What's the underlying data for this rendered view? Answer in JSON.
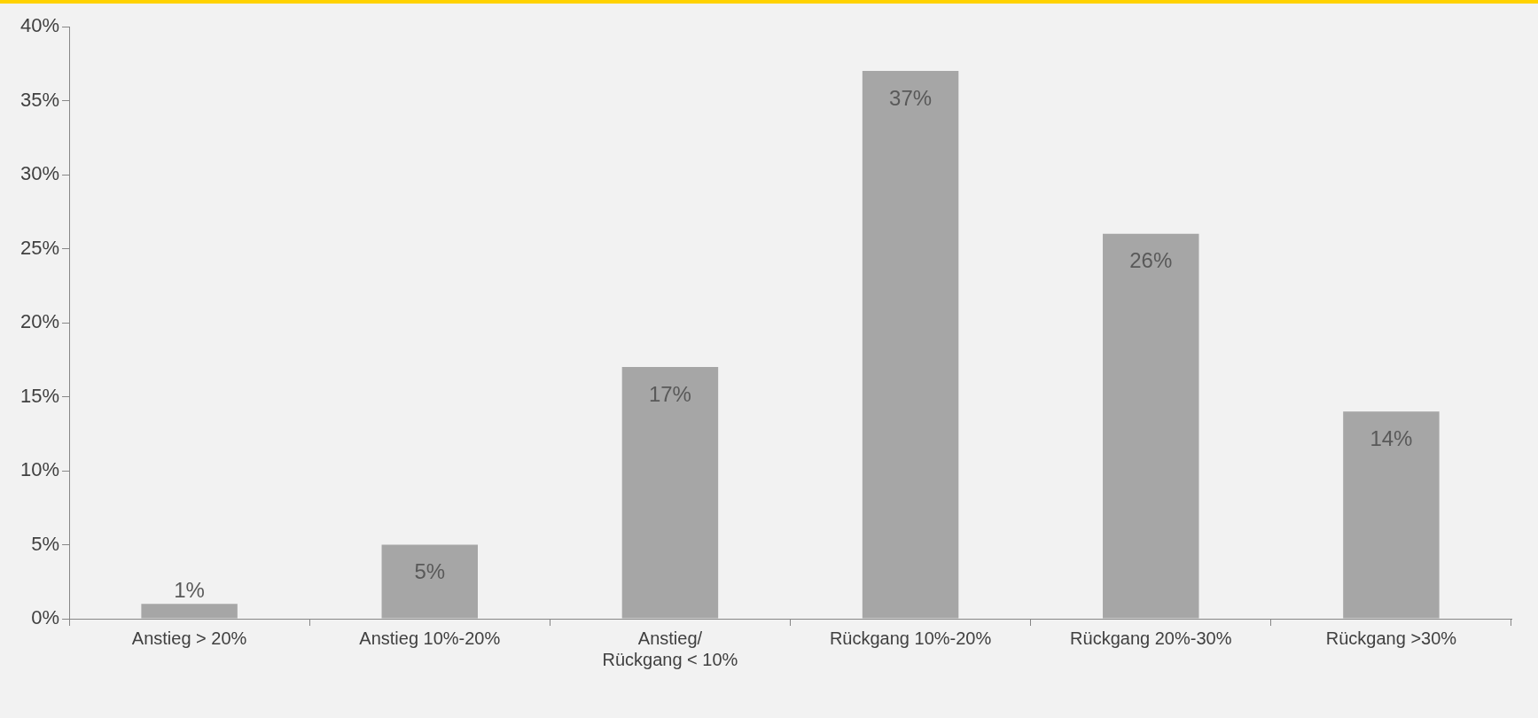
{
  "chart_data": {
    "type": "bar",
    "categories": [
      "Anstieg > 20%",
      "Anstieg 10%-20%",
      "Anstieg/ Rückgang < 10%",
      "Rückgang 10%-20%",
      "Rückgang 20%-30%",
      "Rückgang >30%"
    ],
    "values": [
      1,
      5,
      17,
      37,
      26,
      14
    ],
    "color": "#a6a6a6",
    "ylim": [
      0,
      40
    ],
    "yticks": [
      {
        "value": 0,
        "label": "0%"
      },
      {
        "value": 5,
        "label": "5%"
      },
      {
        "value": 10,
        "label": "10%"
      },
      {
        "value": 15,
        "label": "15%"
      },
      {
        "value": 20,
        "label": "20%"
      },
      {
        "value": 25,
        "label": "25%"
      },
      {
        "value": 30,
        "label": "30%"
      },
      {
        "value": 35,
        "label": "35%"
      },
      {
        "value": 40,
        "label": "40%"
      }
    ],
    "value_labels": [
      "1%",
      "5%",
      "17%",
      "37%",
      "26%",
      "14%"
    ],
    "grid": false,
    "legend": false
  }
}
